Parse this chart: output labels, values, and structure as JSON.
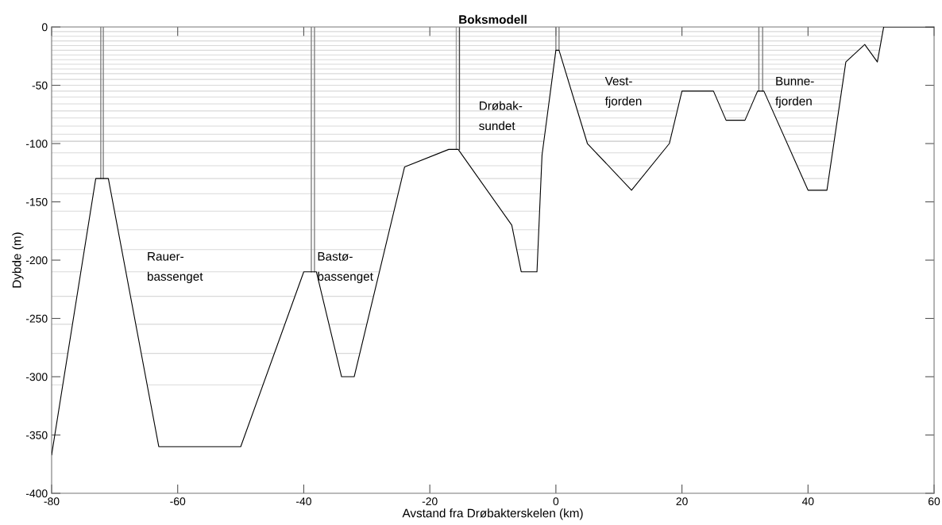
{
  "chart_data": {
    "type": "line",
    "title": "Boksmodell",
    "xlabel": "Avstand fra Drøbakterskelen (km)",
    "ylabel": "Dybde (m)",
    "series": [
      {
        "color": "#000000",
        "x": [
          -80,
          -73,
          -71,
          -63,
          -50,
          -40,
          -38,
          -34,
          -32,
          -24,
          -17,
          -15.5,
          -7,
          -5.5,
          -3,
          -2.2,
          0,
          0.5,
          5,
          12,
          18,
          20,
          25,
          27,
          30,
          32,
          33,
          40,
          43,
          46,
          49,
          51,
          52,
          60
        ],
        "values": [
          -367,
          -130,
          -130,
          -360,
          -360,
          -210,
          -210,
          -300,
          -300,
          -120,
          -105,
          -105,
          -170,
          -210,
          -210,
          -110,
          -20,
          -20,
          -100,
          -140,
          -100,
          -55,
          -55,
          -80,
          -80,
          -55,
          -55,
          -140,
          -140,
          -30,
          -15,
          -30,
          0,
          0
        ]
      },
      {
        "color": "#808080",
        "x": [
          -72.2,
          -72.2
        ],
        "values": [
          0,
          -130
        ]
      },
      {
        "color": "#808080",
        "x": [
          -71.8,
          -71.8
        ],
        "values": [
          0,
          -130
        ]
      },
      {
        "color": "#808080",
        "x": [
          -38.8,
          -38.8
        ],
        "values": [
          0,
          -210
        ]
      },
      {
        "color": "#808080",
        "x": [
          -38.3,
          -38.3
        ],
        "values": [
          0,
          -210
        ]
      },
      {
        "color": "#a0a0a0",
        "x": [
          -15.8,
          -15.8
        ],
        "values": [
          0,
          -105
        ]
      },
      {
        "color": "#404040",
        "x": [
          -15.3,
          -15.3
        ],
        "values": [
          0,
          -105
        ]
      },
      {
        "color": "#808080",
        "x": [
          0.0,
          0.0
        ],
        "values": [
          0,
          -20
        ]
      },
      {
        "color": "#808080",
        "x": [
          0.5,
          0.5
        ],
        "values": [
          0,
          -20
        ]
      },
      {
        "color": "#808080",
        "x": [
          32.2,
          32.2
        ],
        "values": [
          0,
          -55
        ]
      },
      {
        "color": "#808080",
        "x": [
          32.8,
          32.8
        ],
        "values": [
          0,
          -55
        ]
      }
    ],
    "xlim": [
      -80,
      60
    ],
    "ylim": [
      -400,
      0
    ],
    "xticks": [
      -80,
      -60,
      -40,
      -20,
      0,
      20,
      40,
      60
    ],
    "yticks": [
      -400,
      -350,
      -300,
      -250,
      -200,
      -150,
      -100,
      -50,
      0
    ],
    "grid": false,
    "marker": "none",
    "line_style": "solid",
    "ref_lines": [
      {
        "axis": "y",
        "value": -4,
        "color": "#d9d9d9"
      },
      {
        "axis": "y",
        "value": -8,
        "color": "#d9d9d9"
      },
      {
        "axis": "y",
        "value": -12,
        "color": "#d9d9d9"
      },
      {
        "axis": "y",
        "value": -16,
        "color": "#d9d9d9"
      },
      {
        "axis": "y",
        "value": -20,
        "color": "#d9d9d9"
      },
      {
        "axis": "y",
        "value": -24,
        "color": "#d9d9d9"
      },
      {
        "axis": "y",
        "value": -28,
        "color": "#d9d9d9"
      },
      {
        "axis": "y",
        "value": -32,
        "color": "#d9d9d9"
      },
      {
        "axis": "y",
        "value": -36,
        "color": "#d9d9d9"
      },
      {
        "axis": "y",
        "value": -40,
        "color": "#d9d9d9"
      },
      {
        "axis": "y",
        "value": -45,
        "color": "#d9d9d9"
      },
      {
        "axis": "y",
        "value": -50,
        "color": "#d9d9d9"
      },
      {
        "axis": "y",
        "value": -55,
        "color": "#d9d9d9"
      },
      {
        "axis": "y",
        "value": -60,
        "color": "#d9d9d9"
      },
      {
        "axis": "y",
        "value": -66,
        "color": "#d9d9d9"
      },
      {
        "axis": "y",
        "value": -72,
        "color": "#d9d9d9"
      },
      {
        "axis": "y",
        "value": -78,
        "color": "#d9d9d9"
      },
      {
        "axis": "y",
        "value": -85,
        "color": "#d9d9d9"
      },
      {
        "axis": "y",
        "value": -92,
        "color": "#d9d9d9"
      },
      {
        "axis": "y",
        "value": -98,
        "color": "#c8c8c8"
      },
      {
        "axis": "y",
        "value": -108,
        "color": "#d9d9d9"
      },
      {
        "axis": "y",
        "value": -119,
        "color": "#d9d9d9"
      },
      {
        "axis": "y",
        "value": -130,
        "color": "#d9d9d9"
      },
      {
        "axis": "y",
        "value": -143,
        "color": "#d9d9d9"
      },
      {
        "axis": "y",
        "value": -158,
        "color": "#d9d9d9"
      },
      {
        "axis": "y",
        "value": -174,
        "color": "#d9d9d9"
      },
      {
        "axis": "y",
        "value": -191,
        "color": "#d9d9d9"
      },
      {
        "axis": "y",
        "value": -210,
        "color": "#d9d9d9"
      },
      {
        "axis": "y",
        "value": -231,
        "color": "#d9d9d9"
      },
      {
        "axis": "y",
        "value": -255,
        "color": "#d9d9d9"
      },
      {
        "axis": "y",
        "value": -280,
        "color": "#d9d9d9"
      },
      {
        "axis": "y",
        "value": -307,
        "color": "#d9d9d9"
      }
    ],
    "annotations": [
      "Rauer-\nbassenget",
      "Bastø-\nbassenget",
      "Drøbak-\nsundet",
      "Vest-\nfjorden",
      "Bunne-\nfjorden"
    ]
  }
}
